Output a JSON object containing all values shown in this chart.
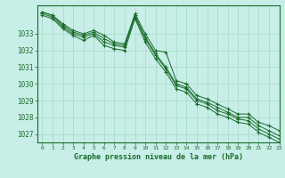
{
  "bg_color": "#c8eee8",
  "grid_color": "#aaddcc",
  "line_color": "#1a6b2a",
  "xlabel": "Graphe pression niveau de la mer (hPa)",
  "xlim": [
    -0.5,
    23
  ],
  "ylim": [
    1026.5,
    1034.7
  ],
  "yticks": [
    1027,
    1028,
    1029,
    1030,
    1031,
    1032,
    1033
  ],
  "xticks": [
    0,
    1,
    2,
    3,
    4,
    5,
    6,
    7,
    8,
    9,
    10,
    11,
    12,
    13,
    14,
    15,
    16,
    17,
    18,
    19,
    20,
    21,
    22,
    23
  ],
  "series": [
    [
      1034.3,
      1034.1,
      1033.6,
      1033.2,
      1033.0,
      1033.2,
      1032.9,
      1032.5,
      1032.4,
      1034.2,
      1033.0,
      1032.0,
      1031.9,
      1030.2,
      1030.0,
      1029.3,
      1029.1,
      1028.8,
      1028.5,
      1028.2,
      1028.2,
      1027.7,
      1027.5,
      1027.2
    ],
    [
      1034.3,
      1034.1,
      1033.5,
      1033.1,
      1032.9,
      1033.1,
      1032.7,
      1032.4,
      1032.3,
      1034.1,
      1032.8,
      1031.8,
      1031.0,
      1030.0,
      1029.8,
      1029.1,
      1028.9,
      1028.6,
      1028.3,
      1028.0,
      1028.0,
      1027.5,
      1027.2,
      1026.9
    ],
    [
      1034.2,
      1034.0,
      1033.4,
      1033.0,
      1032.8,
      1033.0,
      1032.5,
      1032.3,
      1032.2,
      1034.0,
      1032.7,
      1031.7,
      1030.9,
      1029.9,
      1029.7,
      1029.0,
      1028.8,
      1028.4,
      1028.2,
      1027.9,
      1027.8,
      1027.3,
      1027.0,
      1026.7
    ],
    [
      1034.1,
      1033.9,
      1033.3,
      1032.9,
      1032.6,
      1032.9,
      1032.3,
      1032.1,
      1032.0,
      1033.9,
      1032.5,
      1031.5,
      1030.7,
      1029.7,
      1029.5,
      1028.8,
      1028.6,
      1028.2,
      1028.0,
      1027.7,
      1027.6,
      1027.1,
      1026.8,
      1026.5
    ]
  ]
}
